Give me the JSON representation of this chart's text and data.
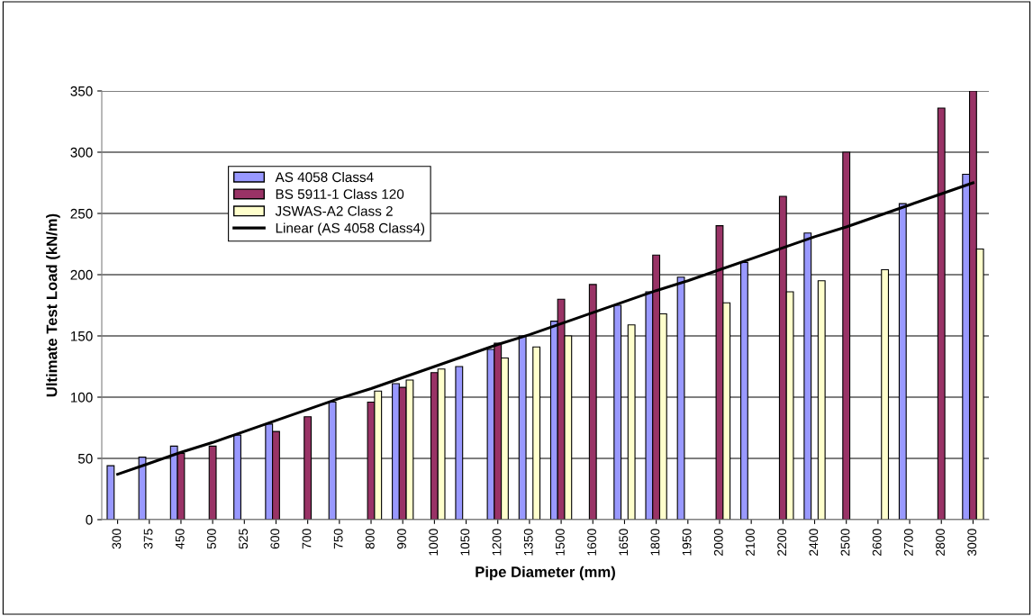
{
  "chart_data": {
    "type": "bar",
    "xlabel": "Pipe Diameter (mm)",
    "ylabel": "Ultimate Test Load (kN/m)",
    "categories": [
      "300",
      "375",
      "450",
      "500",
      "525",
      "600",
      "700",
      "750",
      "800",
      "900",
      "1000",
      "1050",
      "1200",
      "1350",
      "1500",
      "1600",
      "1650",
      "1800",
      "1950",
      "2000",
      "2100",
      "2200",
      "2400",
      "2500",
      "2600",
      "2700",
      "2800",
      "3000"
    ],
    "series": [
      {
        "name": "AS 4058 Class4",
        "color": "#9999ff",
        "values": [
          44,
          51,
          60,
          null,
          69,
          78,
          null,
          96,
          null,
          111,
          null,
          125,
          139,
          150,
          162,
          null,
          175,
          186,
          198,
          null,
          210,
          null,
          234,
          null,
          null,
          258,
          null,
          282
        ]
      },
      {
        "name": "BS 5911-1 Class 120",
        "color": "#993366",
        "values": [
          null,
          null,
          54,
          60,
          null,
          72,
          84,
          null,
          96,
          108,
          120,
          null,
          144,
          null,
          180,
          192,
          null,
          216,
          null,
          240,
          null,
          264,
          null,
          300,
          null,
          null,
          336,
          350
        ]
      },
      {
        "name": "JSWAS-A2 Class 2",
        "color": "#ffffcc",
        "values": [
          null,
          null,
          null,
          null,
          null,
          null,
          null,
          null,
          105,
          114,
          123,
          null,
          132,
          141,
          150,
          null,
          159,
          168,
          null,
          177,
          null,
          186,
          195,
          null,
          204,
          null,
          null,
          221
        ]
      },
      {
        "name": "Linear (AS 4058 Class4)",
        "type": "line",
        "color": "#000000",
        "values": [
          37,
          46,
          55,
          63,
          72,
          81,
          90,
          99,
          107,
          116,
          125,
          134,
          143,
          151,
          160,
          169,
          178,
          187,
          195,
          204,
          213,
          222,
          231,
          239,
          248,
          257,
          266,
          275
        ]
      }
    ],
    "ylim": [
      0,
      350
    ],
    "yticks": [
      0,
      50,
      100,
      150,
      200,
      250,
      300,
      350
    ],
    "grid": "y",
    "legend": "top left"
  }
}
